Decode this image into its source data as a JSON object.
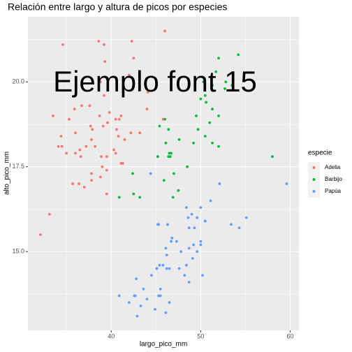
{
  "chart_data": {
    "type": "scatter",
    "title": "Relación entre largo y altura de picos por especies",
    "x_label": "largo_pico_mm",
    "y_label": "alto_pico_mm",
    "annotation": "Ejemplo font 15",
    "legend_title": "especie",
    "legend": "right",
    "xlim": [
      30.7,
      60.97
    ],
    "ylim": [
      12.68,
      21.92
    ],
    "xticks": [
      40,
      50,
      60
    ],
    "yticks": [
      {
        "value": 15,
        "label": "15.0"
      },
      {
        "value": 17.5,
        "label": "17.5"
      },
      {
        "value": 20,
        "label": "20.0"
      }
    ],
    "xminorticks": [
      35,
      45,
      55
    ],
    "yminorticks": [
      13.75,
      16.25,
      18.75,
      21.25
    ],
    "grid": true,
    "series": [
      {
        "name": "Adelia",
        "color": "#F8766D",
        "x": [
          39.1,
          39.5,
          40.3,
          36.7,
          39.3,
          38.9,
          39.2,
          34.1,
          42,
          37.8,
          37.8,
          41.1,
          38.6,
          34.6,
          36.6,
          38.7,
          42.5,
          34.4,
          46,
          37.8,
          37.7,
          35.9,
          38.2,
          38.8,
          35.3,
          40.6,
          40.5,
          37.9,
          40.5,
          39.5,
          37.2,
          39.5,
          40.9,
          36.4,
          39.2,
          38.8,
          42.2,
          37.6,
          39.8,
          36.5,
          40.8,
          36,
          44.1,
          37,
          39.6,
          41.1,
          36,
          42.3,
          32.1,
          33.1,
          33.5,
          35,
          35.7,
          45.8,
          41.3,
          41.5,
          43.2,
          39,
          44,
          34.5
        ],
        "values": [
          18.7,
          17.4,
          18,
          19.3,
          20.6,
          17.8,
          19.6,
          18.1,
          20.2,
          17.1,
          17.3,
          17.6,
          21.2,
          21.1,
          17.8,
          19,
          20.7,
          18.4,
          21.5,
          18.3,
          18.7,
          19.2,
          18.1,
          17.2,
          18.9,
          18.6,
          17.9,
          18.6,
          18.9,
          16.7,
          18.1,
          17.8,
          18.9,
          17,
          21.1,
          20,
          18.5,
          19.3,
          19.1,
          18,
          18.4,
          18.5,
          19.7,
          16.9,
          18.8,
          19,
          17.9,
          21.2,
          15.5,
          16.1,
          19,
          17.9,
          17,
          18.9,
          17.6,
          18.3,
          18.5,
          17.5,
          19.2,
          18.1
        ]
      },
      {
        "name": "Barbijo",
        "color": "#00BA38",
        "x": [
          46.5,
          50,
          51.3,
          45.4,
          52.7,
          45.2,
          46.1,
          51.3,
          46,
          51.3,
          46.6,
          51.7,
          47,
          52,
          45.9,
          50.5,
          50.3,
          58,
          46.4,
          49.2,
          42.4,
          48.5,
          43.2,
          50.6,
          46.7,
          52,
          50.5,
          49.5,
          46.4,
          52.8,
          40.9,
          54.2,
          42.5,
          51,
          49.7,
          47.5,
          47.6,
          52,
          46.9,
          53.5
        ],
        "values": [
          17.9,
          19.5,
          19.2,
          18.7,
          19.8,
          17.8,
          18.2,
          18.2,
          18.9,
          19.9,
          17.8,
          20.3,
          17.3,
          18.1,
          17.1,
          19.6,
          20,
          17.8,
          18.6,
          18.2,
          17.3,
          17.5,
          16.6,
          19.4,
          17.9,
          19,
          18.4,
          19,
          17.8,
          20,
          16.6,
          20.8,
          16.7,
          18.8,
          18.6,
          16.8,
          18.3,
          20.7,
          16.6,
          19.9
        ]
      },
      {
        "name": "Papúa",
        "color": "#619CFF",
        "x": [
          46.1,
          50,
          48.7,
          50,
          47.6,
          46.5,
          45.4,
          46.7,
          43.3,
          46.8,
          40.9,
          49,
          45.5,
          48.4,
          45.8,
          49.3,
          42,
          49.2,
          46.2,
          48.7,
          50.2,
          45.1,
          46.5,
          46.3,
          42.9,
          46.1,
          44.5,
          47.8,
          48.2,
          50,
          47.3,
          42.8,
          45.1,
          59.6,
          49.1,
          48.4,
          42.6,
          44.4,
          44,
          48.7,
          42.7,
          49.6,
          45.3,
          49.6,
          50.5,
          43.6,
          45.5,
          50.5,
          44.9,
          45.2,
          55.1,
          53.4,
          54.3,
          52.1,
          48.6,
          46.2,
          45.3,
          51.1
        ],
        "values": [
          13.2,
          16.3,
          14.1,
          15.2,
          14.5,
          13.5,
          14.6,
          15.3,
          13.4,
          15.4,
          13.7,
          16.1,
          13.7,
          14.6,
          14.6,
          15.7,
          13.5,
          15.2,
          14.5,
          15.1,
          14.3,
          14.5,
          14.5,
          15.8,
          13.1,
          15.1,
          14.3,
          15,
          14.3,
          15.3,
          15.3,
          14.2,
          14.5,
          17,
          14.8,
          16.3,
          13.7,
          17.3,
          13.6,
          15.7,
          13.7,
          16,
          13.7,
          15,
          15.9,
          13.9,
          13.9,
          15.9,
          13.3,
          15.8,
          16,
          15.8,
          15.7,
          17,
          16,
          14.9,
          15.8,
          16.5
        ]
      }
    ]
  }
}
